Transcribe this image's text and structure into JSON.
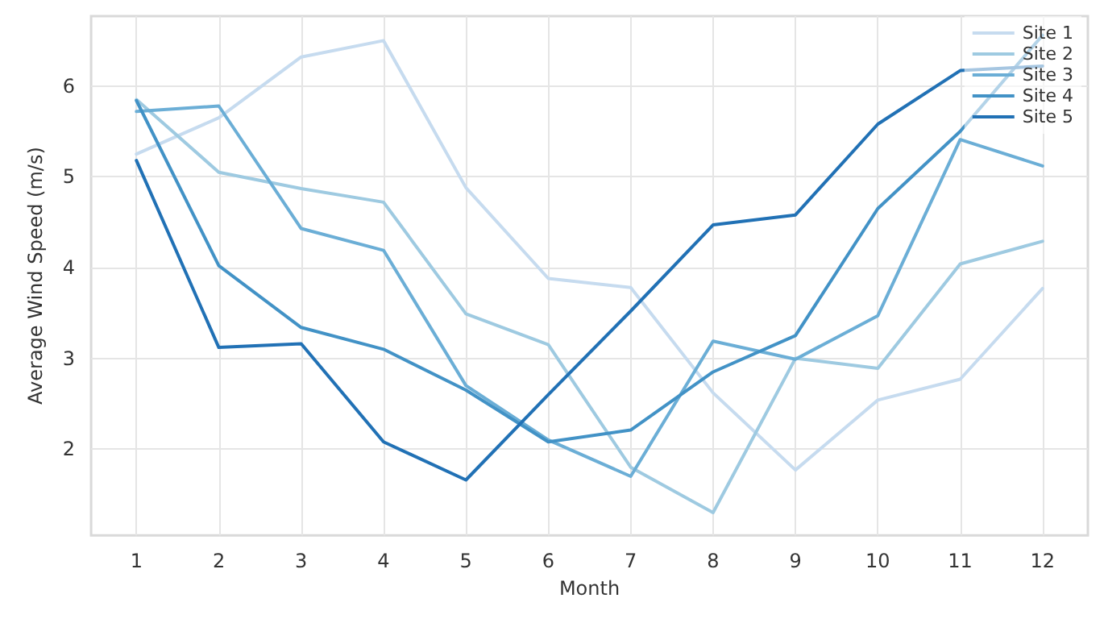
{
  "chart_data": {
    "type": "line",
    "xlabel": "Month",
    "ylabel": "Average Wind Speed (m/s)",
    "x": [
      1,
      2,
      3,
      4,
      5,
      6,
      7,
      8,
      9,
      10,
      11,
      12
    ],
    "series": [
      {
        "name": "Site 1",
        "color": "#c6dbef",
        "values": [
          5.25,
          5.65,
          6.32,
          6.5,
          4.88,
          3.88,
          3.78,
          2.62,
          1.77,
          2.54,
          2.77,
          3.77
        ]
      },
      {
        "name": "Site 2",
        "color": "#9ecae1",
        "values": [
          5.85,
          5.05,
          4.87,
          4.72,
          3.49,
          3.15,
          1.8,
          1.3,
          3.0,
          2.89,
          4.04,
          4.29
        ]
      },
      {
        "name": "Site 3",
        "color": "#6baed6",
        "values": [
          5.72,
          5.78,
          4.43,
          4.19,
          2.7,
          2.1,
          1.7,
          3.19,
          2.99,
          3.47,
          5.41,
          5.12
        ]
      },
      {
        "name": "Site 4",
        "color": "#4292c6",
        "values": [
          5.84,
          4.02,
          3.34,
          3.1,
          2.65,
          2.08,
          2.21,
          2.85,
          3.25,
          4.65,
          5.5,
          6.56
        ]
      },
      {
        "name": "Site 5",
        "color": "#2171b5",
        "values": [
          5.18,
          3.12,
          3.16,
          2.08,
          1.66,
          2.6,
          3.52,
          4.47,
          4.58,
          5.58,
          6.17,
          6.22
        ]
      }
    ],
    "xlim": [
      0.45,
      12.55
    ],
    "ylim": [
      1.05,
      6.77
    ],
    "xticks": [
      1,
      2,
      3,
      4,
      5,
      6,
      7,
      8,
      9,
      10,
      11,
      12
    ],
    "yticks": [
      2,
      3,
      4,
      5,
      6
    ],
    "grid": true,
    "legend": "top right",
    "marker": "none",
    "line_style": "solid"
  }
}
